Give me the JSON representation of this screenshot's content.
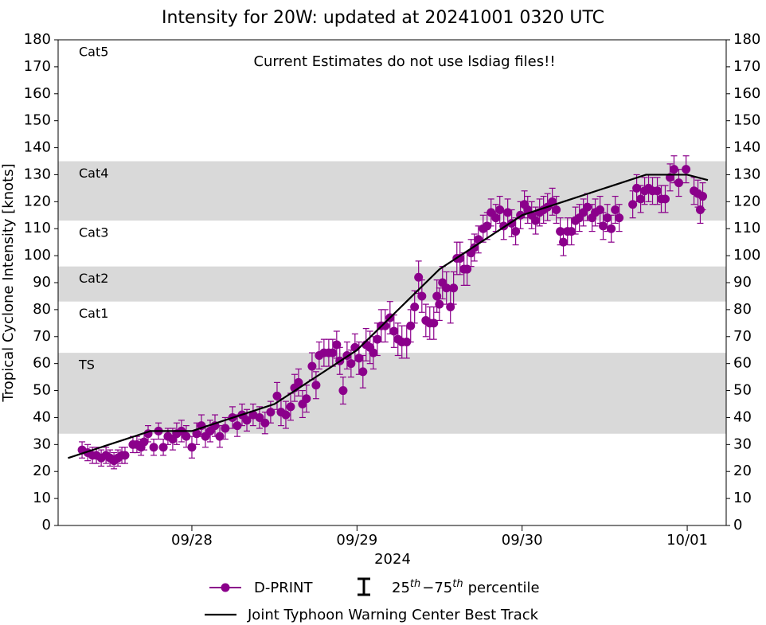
{
  "chart_data": {
    "type": "scatter",
    "title": "Intensity for 20W: updated at 20241001 0320 UTC",
    "annotation": "Current Estimates do not use lsdiag files!!",
    "xlabel": "2024",
    "ylabel": "Tropical Cyclone Intensity [knots]",
    "xlim": [
      -0.81,
      3.236
    ],
    "xticks": [
      {
        "value": 0,
        "label": "09/28"
      },
      {
        "value": 1,
        "label": "09/29"
      },
      {
        "value": 2,
        "label": "09/30"
      },
      {
        "value": 3,
        "label": "10/01"
      }
    ],
    "ylim": [
      0,
      180
    ],
    "yticks": [
      0,
      10,
      20,
      30,
      40,
      50,
      60,
      70,
      80,
      90,
      100,
      110,
      120,
      130,
      140,
      150,
      160,
      170,
      180
    ],
    "band_color": "#d9d9d9",
    "bands": [
      {
        "label": "TS",
        "lower": 34,
        "upper": 64,
        "shaded": true
      },
      {
        "label": "Cat1",
        "lower": 64,
        "upper": 83,
        "shaded": false
      },
      {
        "label": "Cat2",
        "lower": 83,
        "upper": 96,
        "shaded": true
      },
      {
        "label": "Cat3",
        "lower": 96,
        "upper": 113,
        "shaded": false
      },
      {
        "label": "Cat4",
        "lower": 113,
        "upper": 135,
        "shaded": true
      },
      {
        "label": "Cat5",
        "lower": 135,
        "shaded": false
      }
    ],
    "error_legend": [
      "25",
      "th",
      "−75",
      "th",
      "percentile"
    ],
    "series": [
      {
        "name": "D-PRINT",
        "color": "#8b008b",
        "kind": "points",
        "x": [
          -0.665,
          -0.631,
          -0.602,
          -0.578,
          -0.549,
          -0.52,
          -0.496,
          -0.472,
          -0.448,
          -0.424,
          -0.405,
          -0.357,
          -0.333,
          -0.308,
          -0.289,
          -0.265,
          -0.231,
          -0.202,
          -0.173,
          -0.145,
          -0.116,
          -0.092,
          -0.063,
          -0.034,
          0,
          0.029,
          0.058,
          0.082,
          0.111,
          0.14,
          0.169,
          0.202,
          0.246,
          0.275,
          0.304,
          0.333,
          0.371,
          0.41,
          0.443,
          0.477,
          0.516,
          0.54,
          0.569,
          0.598,
          0.622,
          0.646,
          0.67,
          0.694,
          0.728,
          0.752,
          0.771,
          0.8,
          0.829,
          0.853,
          0.877,
          0.896,
          0.916,
          0.94,
          0.964,
          0.988,
          1.012,
          1.036,
          1.055,
          1.079,
          1.099,
          1.123,
          1.147,
          1.171,
          1.2,
          1.224,
          1.248,
          1.272,
          1.301,
          1.325,
          1.349,
          1.373,
          1.393,
          1.417,
          1.441,
          1.465,
          1.484,
          1.499,
          1.518,
          1.542,
          1.566,
          1.585,
          1.605,
          1.624,
          1.648,
          1.667,
          1.691,
          1.711,
          1.735,
          1.764,
          1.788,
          1.812,
          1.841,
          1.865,
          1.889,
          1.913,
          1.937,
          1.961,
          1.99,
          2.014,
          2.034,
          2.058,
          2.082,
          2.106,
          2.13,
          2.154,
          2.183,
          2.207,
          2.231,
          2.25,
          2.275,
          2.299,
          2.323,
          2.347,
          2.371,
          2.395,
          2.424,
          2.443,
          2.472,
          2.491,
          2.516,
          2.54,
          2.564,
          2.588,
          2.67,
          2.694,
          2.718,
          2.742,
          2.766,
          2.79,
          2.819,
          2.843,
          2.867,
          2.896,
          2.92,
          2.949,
          2.993,
          3.041,
          3.065,
          3.079,
          3.094
        ],
        "values": [
          28,
          27,
          26,
          26,
          25,
          26,
          25,
          24,
          25,
          26,
          26,
          30,
          30,
          29,
          31,
          34,
          29,
          35,
          29,
          33,
          32,
          34,
          35,
          33,
          29,
          34,
          37,
          33,
          35,
          37,
          33,
          36,
          40,
          37,
          41,
          39,
          41,
          40,
          38,
          42,
          48,
          42,
          41,
          44,
          51,
          53,
          45,
          47,
          59,
          52,
          63,
          64,
          64,
          64,
          67,
          61,
          50,
          63,
          60,
          66,
          62,
          57,
          67,
          66,
          64,
          69,
          74,
          74,
          77,
          72,
          69,
          68,
          68,
          74,
          81,
          92,
          85,
          76,
          75,
          75,
          85,
          82,
          90,
          88,
          81,
          88,
          99,
          99,
          95,
          95,
          101,
          103,
          106,
          110,
          111,
          116,
          114,
          117,
          111,
          116,
          112,
          109,
          115,
          119,
          117,
          115,
          113,
          116,
          117,
          118,
          120,
          117,
          109,
          105,
          109,
          109,
          113,
          114,
          116,
          118,
          114,
          116,
          117,
          111,
          114,
          110,
          117,
          114,
          119,
          125,
          121,
          124,
          125,
          124,
          124,
          121,
          121,
          129,
          132,
          127,
          132,
          124,
          123,
          117,
          122
        ],
        "errors": [
          3,
          3,
          3,
          3,
          3,
          3,
          3,
          3,
          3,
          3,
          3,
          3,
          3,
          3,
          3,
          3,
          3,
          3,
          3,
          3,
          4,
          4,
          4,
          4,
          4,
          4,
          4,
          4,
          4,
          4,
          4,
          4,
          4,
          4,
          4,
          4,
          4,
          4,
          4,
          4,
          5,
          5,
          5,
          5,
          5,
          5,
          5,
          5,
          5,
          5,
          5,
          5,
          5,
          5,
          5,
          5,
          5,
          5,
          5,
          5,
          6,
          6,
          6,
          6,
          6,
          6,
          6,
          6,
          6,
          6,
          6,
          6,
          6,
          6,
          6,
          6,
          6,
          6,
          6,
          6,
          6,
          6,
          6,
          6,
          6,
          6,
          6,
          6,
          6,
          6,
          5,
          5,
          5,
          5,
          5,
          5,
          5,
          5,
          5,
          5,
          5,
          5,
          5,
          5,
          5,
          5,
          5,
          5,
          5,
          5,
          5,
          5,
          5,
          5,
          5,
          5,
          5,
          5,
          5,
          5,
          5,
          5,
          5,
          5,
          5,
          5,
          5,
          5,
          5,
          5,
          5,
          5,
          5,
          5,
          5,
          5,
          5,
          5,
          5,
          5,
          5,
          5,
          5,
          5,
          5
        ]
      },
      {
        "name": "Joint Typhoon Warning Center Best Track",
        "color": "#000000",
        "kind": "line",
        "x": [
          -0.75,
          -0.5,
          -0.25,
          0,
          0.25,
          0.5,
          0.75,
          1.0,
          1.25,
          1.5,
          1.75,
          2.0,
          2.25,
          2.5,
          2.75,
          3.0,
          3.125
        ],
        "values": [
          25,
          30,
          35,
          35,
          40,
          45,
          55,
          65,
          80,
          95,
          105,
          115,
          120,
          125,
          130,
          130,
          128
        ]
      }
    ]
  }
}
